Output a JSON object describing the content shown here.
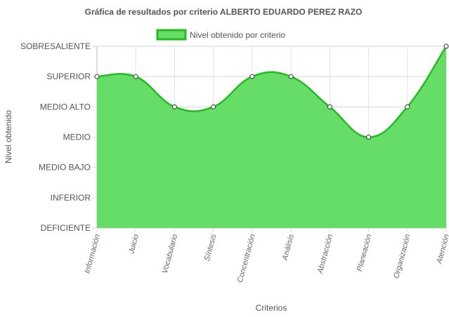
{
  "chart_data": {
    "type": "area",
    "title": "Gráfica de resultados por criterio ALBERTO EDUARDO PEREZ RAZO",
    "xlabel": "Criterios",
    "ylabel": "Nivel obtenido",
    "legend_position": "top",
    "grid": true,
    "y_levels": [
      "DEFICIENTE",
      "INFERIOR",
      "MEDIO BAJO",
      "MEDIO",
      "MEDIO ALTO",
      "SUPERIOR",
      "SOBRESALIENTE"
    ],
    "categories": [
      "Información",
      "Juicio",
      "Vocabulario",
      "Síntesis",
      "Concentración",
      "Análisis",
      "Abstracción",
      "Planeación",
      "Organización",
      "Atención"
    ],
    "series": [
      {
        "name": "Nivel obtenido por criterio",
        "values": [
          "SUPERIOR",
          "SUPERIOR",
          "MEDIO ALTO",
          "MEDIO ALTO",
          "SUPERIOR",
          "SUPERIOR",
          "MEDIO ALTO",
          "MEDIO",
          "MEDIO ALTO",
          "SOBRESALIENTE"
        ],
        "fill_color": "#66dd66",
        "line_color": "#22bb22"
      }
    ]
  }
}
